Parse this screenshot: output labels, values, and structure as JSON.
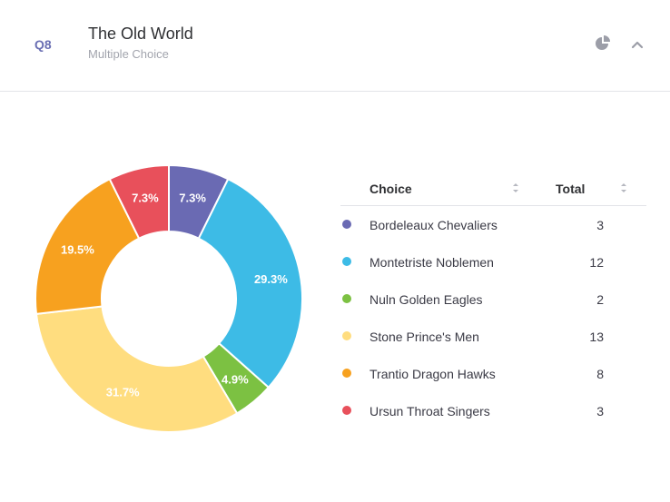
{
  "question": {
    "number": "Q8",
    "title": "The Old World",
    "type": "Multiple Choice"
  },
  "header_icons": {
    "chart_toggle": "pie-chart-icon",
    "collapse": "chevron-up-icon"
  },
  "table": {
    "col_choice": "Choice",
    "col_total": "Total",
    "sort_icon": "sort-arrows-icon"
  },
  "chart_data": {
    "type": "pie",
    "donut": true,
    "categories": [
      "Bordeleaux Chevaliers",
      "Montetriste Noblemen",
      "Nuln Golden Eagles",
      "Stone Prince's Men",
      "Trantio Dragon Hawks",
      "Ursun Throat Singers"
    ],
    "values": [
      3,
      12,
      2,
      13,
      8,
      3
    ],
    "labels": [
      "7.3%",
      "29.3%",
      "4.9%",
      "31.7%",
      "19.5%",
      "7.3%"
    ],
    "colors": [
      "#6a6ab3",
      "#3dbbe6",
      "#7cc142",
      "#ffdd7f",
      "#f7a11f",
      "#e8505b"
    ]
  }
}
